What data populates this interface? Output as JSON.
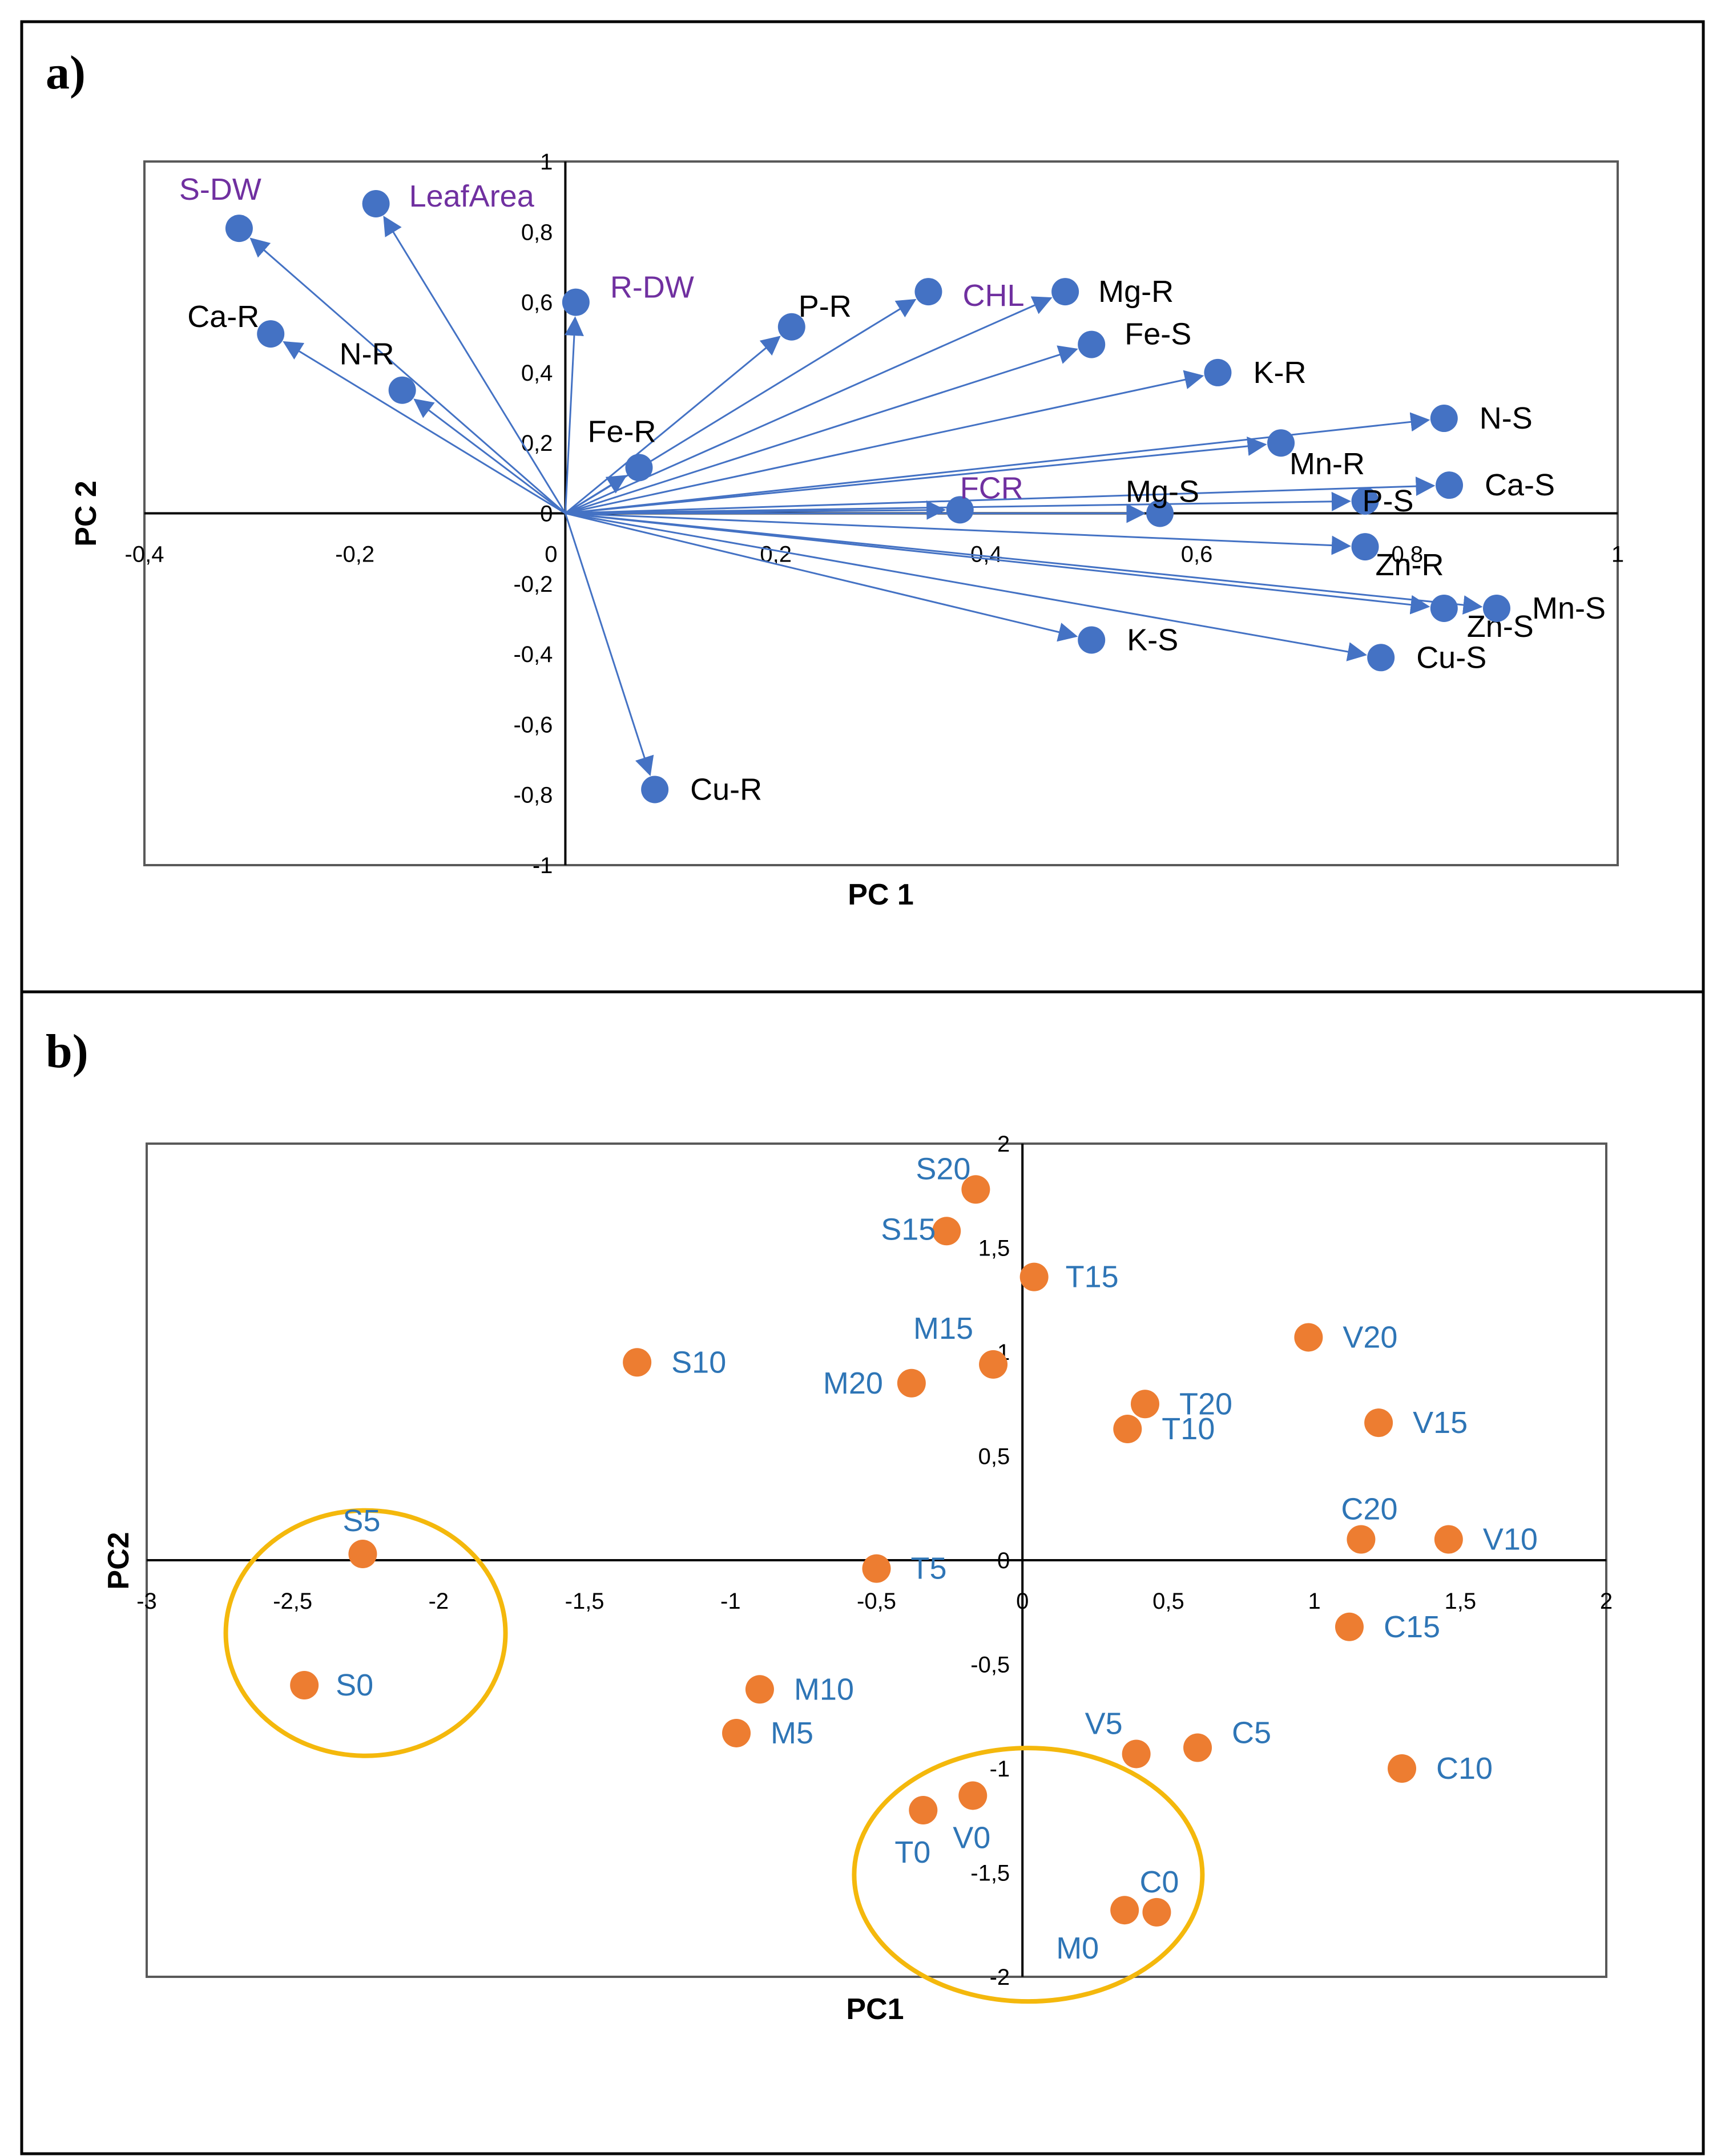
{
  "colors": {
    "loading_point": "#4472c4",
    "score_point": "#ed7d31",
    "ring": "#f4b80c",
    "purple_label": "#7030a0",
    "blue_label": "#2e75b6",
    "black_label": "#000000"
  },
  "chart_data": [
    {
      "panel": "a)",
      "type": "scatter",
      "title": "",
      "xlabel": "PC 1",
      "ylabel": "PC 2",
      "xlim": [
        -0.4,
        1
      ],
      "ylim": [
        -1,
        1
      ],
      "xticks": [
        "-0,4",
        "-0,2",
        "0",
        "0,2",
        "0,4",
        "0,6",
        "0,8",
        "1"
      ],
      "yticks": [
        "1",
        "0,8",
        "0,6",
        "0,4",
        "0,2",
        "0",
        "-0,2",
        "-0,4",
        "-0,6",
        "-0,8",
        "-1"
      ],
      "vectors_from_origin": true,
      "points": [
        {
          "label": "S-DW",
          "x": -0.31,
          "y": 0.81,
          "label_color": "purple"
        },
        {
          "label": "LeafArea",
          "x": -0.18,
          "y": 0.88,
          "label_color": "purple"
        },
        {
          "label": "Ca-R",
          "x": -0.28,
          "y": 0.51,
          "label_color": "black"
        },
        {
          "label": "N-R",
          "x": -0.155,
          "y": 0.35,
          "label_color": "black"
        },
        {
          "label": "R-DW",
          "x": 0.01,
          "y": 0.6,
          "label_color": "purple"
        },
        {
          "label": "Fe-R",
          "x": 0.07,
          "y": 0.13,
          "label_color": "black"
        },
        {
          "label": "P-R",
          "x": 0.215,
          "y": 0.53,
          "label_color": "black"
        },
        {
          "label": "CHL",
          "x": 0.345,
          "y": 0.63,
          "label_color": "purple"
        },
        {
          "label": "Mg-R",
          "x": 0.475,
          "y": 0.63,
          "label_color": "black"
        },
        {
          "label": "Fe-S",
          "x": 0.5,
          "y": 0.48,
          "label_color": "black"
        },
        {
          "label": "K-R",
          "x": 0.62,
          "y": 0.4,
          "label_color": "black"
        },
        {
          "label": "N-S",
          "x": 0.835,
          "y": 0.27,
          "label_color": "black"
        },
        {
          "label": "Mn-R",
          "x": 0.68,
          "y": 0.2,
          "label_color": "black"
        },
        {
          "label": "Ca-S",
          "x": 0.84,
          "y": 0.08,
          "label_color": "black"
        },
        {
          "label": "P-S",
          "x": 0.76,
          "y": 0.035,
          "label_color": "black"
        },
        {
          "label": "FCR",
          "x": 0.375,
          "y": 0.01,
          "label_color": "purple"
        },
        {
          "label": "Mg-S",
          "x": 0.565,
          "y": 0.0,
          "label_color": "black"
        },
        {
          "label": "Zn-R",
          "x": 0.76,
          "y": -0.095,
          "label_color": "black"
        },
        {
          "label": "Zn-S",
          "x": 0.835,
          "y": -0.27,
          "label_color": "black"
        },
        {
          "label": "Mn-S",
          "x": 0.885,
          "y": -0.27,
          "label_color": "black"
        },
        {
          "label": "K-S",
          "x": 0.5,
          "y": -0.36,
          "label_color": "black"
        },
        {
          "label": "Cu-S",
          "x": 0.775,
          "y": -0.41,
          "label_color": "black"
        },
        {
          "label": "Cu-R",
          "x": 0.085,
          "y": -0.785,
          "label_color": "black"
        }
      ]
    },
    {
      "panel": "b)",
      "type": "scatter",
      "title": "",
      "xlabel": "PC1",
      "ylabel": "PC2",
      "xlim": [
        -3,
        2
      ],
      "ylim": [
        -2,
        2
      ],
      "xticks": [
        "-3",
        "-2,5",
        "-2",
        "-1,5",
        "-1",
        "-0,5",
        "0",
        "0,5",
        "1",
        "1,5",
        "2"
      ],
      "yticks": [
        "2",
        "1,5",
        "1",
        "0,5",
        "0",
        "-0,5",
        "-1",
        "-1,5",
        "-2"
      ],
      "highlight_rings": [
        {
          "center_x": -2.25,
          "center_y": -0.35,
          "members": [
            "S5",
            "S0"
          ]
        },
        {
          "center_x": 0.02,
          "center_y": -1.51,
          "members": [
            "T0",
            "V0",
            "C0",
            "M0"
          ]
        }
      ],
      "points": [
        {
          "label": "S20",
          "x": -0.16,
          "y": 1.78
        },
        {
          "label": "S15",
          "x": -0.26,
          "y": 1.58
        },
        {
          "label": "T15",
          "x": 0.04,
          "y": 1.36
        },
        {
          "label": "M15",
          "x": -0.1,
          "y": 0.94
        },
        {
          "label": "S10",
          "x": -1.32,
          "y": 0.95
        },
        {
          "label": "M20",
          "x": -0.38,
          "y": 0.85
        },
        {
          "label": "V20",
          "x": 0.98,
          "y": 1.07
        },
        {
          "label": "T20",
          "x": 0.42,
          "y": 0.75
        },
        {
          "label": "T10",
          "x": 0.36,
          "y": 0.63
        },
        {
          "label": "V15",
          "x": 1.22,
          "y": 0.66
        },
        {
          "label": "C20",
          "x": 1.16,
          "y": 0.1
        },
        {
          "label": "V10",
          "x": 1.46,
          "y": 0.1
        },
        {
          "label": "S5",
          "x": -2.26,
          "y": 0.03
        },
        {
          "label": "T5",
          "x": -0.5,
          "y": -0.04
        },
        {
          "label": "C15",
          "x": 1.12,
          "y": -0.32
        },
        {
          "label": "S0",
          "x": -2.46,
          "y": -0.6
        },
        {
          "label": "M10",
          "x": -0.9,
          "y": -0.62
        },
        {
          "label": "M5",
          "x": -0.98,
          "y": -0.83
        },
        {
          "label": "V5",
          "x": 0.39,
          "y": -0.93
        },
        {
          "label": "C5",
          "x": 0.6,
          "y": -0.9
        },
        {
          "label": "C10",
          "x": 1.3,
          "y": -1.0
        },
        {
          "label": "T0",
          "x": -0.34,
          "y": -1.2
        },
        {
          "label": "V0",
          "x": -0.17,
          "y": -1.13
        },
        {
          "label": "C0",
          "x": 0.46,
          "y": -1.69
        },
        {
          "label": "M0",
          "x": 0.35,
          "y": -1.68
        }
      ]
    }
  ]
}
